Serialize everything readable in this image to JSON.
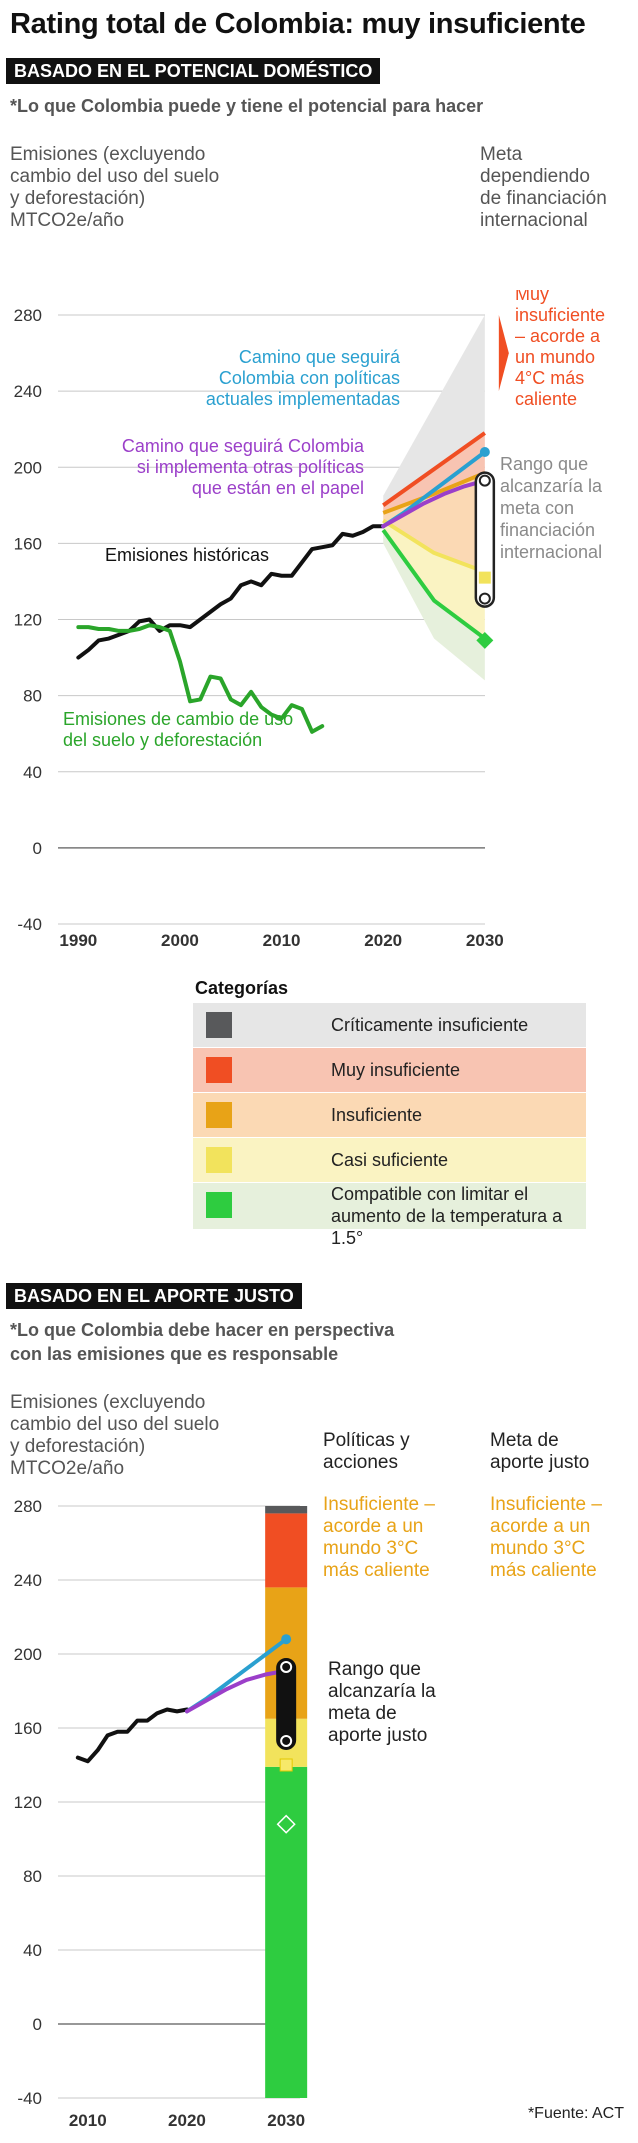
{
  "title": "Rating total de Colombia: muy insuficiente",
  "section1": {
    "heading": "BASADO EN EL POTENCIAL DOMÉSTICO",
    "subtitle": "*Lo que Colombia puede y tiene el potencial para hacer",
    "y_label_lines": [
      "Emisiones (excluyendo",
      "cambio del uso del suelo",
      "y deforestación)",
      "MTCO2e/año"
    ],
    "target_label_lines": [
      "Meta",
      "dependiendo",
      "de financiación",
      "internacional"
    ],
    "target_rating_lines": [
      "Muy",
      "insuficiente",
      "– acorde a",
      "un mundo",
      "4°C más",
      "caliente"
    ],
    "range_label_lines": [
      "Rango que",
      "alcanzaría la",
      "meta con",
      "financiación",
      "internacional"
    ],
    "current_policy_label_lines": [
      "Camino que seguirá",
      "Colombia con políticas",
      "actuales implementadas"
    ],
    "other_policy_label_lines": [
      "Camino que seguirá Colombia",
      "si implementa otras políticas",
      "que están en el papel"
    ],
    "historic_label": "Emisiones históricas",
    "landuse_label_lines": [
      "Emisiones de cambio de uso",
      "del suelo y deforestación"
    ]
  },
  "legend": {
    "title": "Categorías",
    "items": [
      {
        "label_lines": [
          "Críticamente insuficiente"
        ],
        "swatch": "#58595b",
        "bg": "#e6e6e6"
      },
      {
        "label_lines": [
          "Muy insuficiente"
        ],
        "swatch": "#f04e23",
        "bg": "#f8c4b2"
      },
      {
        "label_lines": [
          "Insuficiente"
        ],
        "swatch": "#e8a317",
        "bg": "#fbd9b4"
      },
      {
        "label_lines": [
          "Casi suficiente"
        ],
        "swatch": "#f2e35c",
        "bg": "#faf3c2"
      },
      {
        "label_lines": [
          "Compatible con limitar el",
          "aumento de la temperatura a 1.5°"
        ],
        "swatch": "#2ecc40",
        "bg": "#e6f0dc"
      }
    ]
  },
  "section2": {
    "heading": "BASADO EN EL APORTE JUSTO",
    "subtitle_lines": [
      "*Lo que Colombia debe hacer en perspectiva",
      "con las emisiones que es responsable"
    ],
    "y_label_lines": [
      "Emisiones (excluyendo",
      "cambio del uso del suelo",
      "y deforestación)",
      "MTCO2e/año"
    ],
    "col1_header_lines": [
      "Políticas y",
      "acciones"
    ],
    "col2_header_lines": [
      "Meta de",
      "aporte justo"
    ],
    "col1_rating_lines": [
      "Insuficiente –",
      "acorde a un",
      "mundo 3°C",
      "más caliente"
    ],
    "col2_rating_lines": [
      "Insuficiente –",
      "acorde a un",
      "mundo 3°C",
      "más caliente"
    ],
    "range_label_lines": [
      "Rango que",
      "alcanzaría la",
      "meta de",
      "aporte justo"
    ]
  },
  "source": "*Fuente: ACT",
  "colors": {
    "historic": "#111111",
    "landuse": "#2aa52a",
    "current_policy": "#2aa0d0",
    "other_policy": "#9b3fc9",
    "very_insufficient": "#f04e23",
    "insufficient": "#e8a317",
    "almost_sufficient": "#f2e35c",
    "compatible": "#2ecc40",
    "critically_insufficient": "#58595b",
    "range_label_gray": "#8a8a8a"
  },
  "chart_data": [
    {
      "type": "line",
      "title": "Basado en el potencial doméstico",
      "ylabel": "Emisiones (excluyendo cambio del uso del suelo y deforestación) MTCO2e/año",
      "xlabel": "",
      "ylim": [
        -40,
        280
      ],
      "xlim": [
        1988,
        2031
      ],
      "x_ticks": [
        1990,
        2000,
        2010,
        2020,
        2030
      ],
      "y_ticks": [
        -40,
        0,
        40,
        80,
        120,
        160,
        200,
        240,
        280
      ],
      "grid": "horizontal",
      "series": [
        {
          "name": "Emisiones históricas",
          "color": "#111111",
          "x": [
            1990,
            1991,
            1992,
            1993,
            1994,
            1995,
            1996,
            1997,
            1998,
            1999,
            2000,
            2001,
            2002,
            2003,
            2004,
            2005,
            2006,
            2007,
            2008,
            2009,
            2010,
            2011,
            2012,
            2013,
            2014,
            2015,
            2016,
            2017,
            2018,
            2019,
            2020
          ],
          "y": [
            100,
            104,
            109,
            110,
            112,
            114,
            119,
            120,
            114,
            117,
            117,
            116,
            120,
            124,
            128,
            131,
            138,
            140,
            138,
            144,
            143,
            143,
            150,
            157,
            158,
            159,
            165,
            164,
            166,
            169,
            169
          ]
        },
        {
          "name": "Emisiones de cambio de uso del suelo y deforestación",
          "color": "#2aa52a",
          "x": [
            1990,
            1991,
            1992,
            1993,
            1994,
            1995,
            1996,
            1997,
            1998,
            1999,
            2000,
            2001,
            2002,
            2003,
            2004,
            2005,
            2006,
            2007,
            2008,
            2009,
            2010,
            2011,
            2012,
            2013,
            2014
          ],
          "y": [
            116,
            116,
            115,
            115,
            114,
            114,
            115,
            117,
            116,
            114,
            98,
            77,
            78,
            90,
            89,
            78,
            75,
            82,
            74,
            70,
            68,
            75,
            73,
            61,
            64
          ]
        },
        {
          "name": "Camino que seguirá Colombia con políticas actuales implementadas",
          "color": "#2aa0d0",
          "x": [
            2020,
            2022,
            2024,
            2026,
            2028,
            2030
          ],
          "y": [
            169,
            176,
            184,
            192,
            200,
            208
          ]
        },
        {
          "name": "Camino que seguirá Colombia si implementa otras políticas que están en el papel",
          "color": "#9b3fc9",
          "x": [
            2020,
            2022,
            2024,
            2026,
            2028,
            2030
          ],
          "y": [
            169,
            175,
            181,
            186,
            190,
            193
          ]
        }
      ],
      "bands": [
        {
          "category": "Críticamente insuficiente",
          "x": [
            2020,
            2030
          ],
          "upper": [
            185,
            280
          ],
          "lower": [
            180,
            218
          ]
        },
        {
          "category": "Muy insuficiente",
          "x": [
            2020,
            2030
          ],
          "upper": [
            180,
            218
          ],
          "lower": [
            176,
            197
          ]
        },
        {
          "category": "Insuficiente",
          "x": [
            2020,
            2025,
            2030
          ],
          "upper": [
            176,
            186,
            197
          ],
          "lower": [
            172,
            155,
            145
          ]
        },
        {
          "category": "Casi suficiente",
          "x": [
            2020,
            2025,
            2030
          ],
          "upper": [
            172,
            155,
            145
          ],
          "lower": [
            167,
            130,
            110
          ]
        },
        {
          "category": "Compatible con limitar el aumento de la temperatura a 1.5°",
          "x": [
            2020,
            2025,
            2030
          ],
          "upper": [
            167,
            130,
            110
          ],
          "lower": [
            160,
            110,
            88
          ]
        }
      ],
      "target_range": {
        "x": 2030,
        "low": 131,
        "high": 193
      },
      "target_points": [
        {
          "x": 2030,
          "y": 142,
          "category": "Casi suficiente"
        },
        {
          "x": 2030,
          "y": 109,
          "category": "Compatible con limitar el aumento de la temperatura a 1.5°"
        }
      ],
      "target_marker": {
        "category": "Muy insuficiente",
        "low": 240,
        "high": 280
      }
    },
    {
      "type": "line",
      "title": "Basado en el aporte justo",
      "ylabel": "Emisiones (excluyendo cambio del uso del suelo y deforestación) MTCO2e/año",
      "xlabel": "",
      "ylim": [
        -40,
        280
      ],
      "xlim": [
        2007,
        2032
      ],
      "x_ticks": [
        2010,
        2020,
        2030
      ],
      "y_ticks": [
        -40,
        0,
        40,
        80,
        120,
        160,
        200,
        240,
        280
      ],
      "grid": "horizontal",
      "series": [
        {
          "name": "Emisiones históricas",
          "color": "#111111",
          "x": [
            2009,
            2010,
            2011,
            2012,
            2013,
            2014,
            2015,
            2016,
            2017,
            2018,
            2019,
            2020
          ],
          "y": [
            144,
            142,
            148,
            156,
            158,
            158,
            164,
            164,
            168,
            170,
            169,
            170
          ]
        },
        {
          "name": "Políticas actuales",
          "color": "#2aa0d0",
          "x": [
            2020,
            2022,
            2024,
            2026,
            2028,
            2030
          ],
          "y": [
            169,
            176,
            184,
            192,
            200,
            208
          ]
        },
        {
          "name": "Otras políticas",
          "color": "#9b3fc9",
          "x": [
            2020,
            2022,
            2024,
            2026,
            2028,
            2030
          ],
          "y": [
            169,
            175,
            181,
            186,
            189,
            191
          ]
        }
      ],
      "stack_bar": {
        "x": 2030,
        "segments": [
          {
            "category": "Compatible con limitar el aumento de la temperatura a 1.5°",
            "from": -40,
            "to": 139
          },
          {
            "category": "Casi suficiente",
            "from": 139,
            "to": 165
          },
          {
            "category": "Insuficiente",
            "from": 165,
            "to": 236
          },
          {
            "category": "Muy insuficiente",
            "from": 236,
            "to": 276
          },
          {
            "category": "Críticamente insuficiente",
            "from": 276,
            "to": 280
          }
        ]
      },
      "target_range": {
        "x": 2030,
        "low": 153,
        "high": 193
      },
      "target_points": [
        {
          "x": 2030,
          "y": 140,
          "category": "Casi suficiente"
        },
        {
          "x": 2030,
          "y": 108,
          "category": "Compatible con limitar el aumento de la temperatura a 1.5°"
        }
      ]
    }
  ]
}
